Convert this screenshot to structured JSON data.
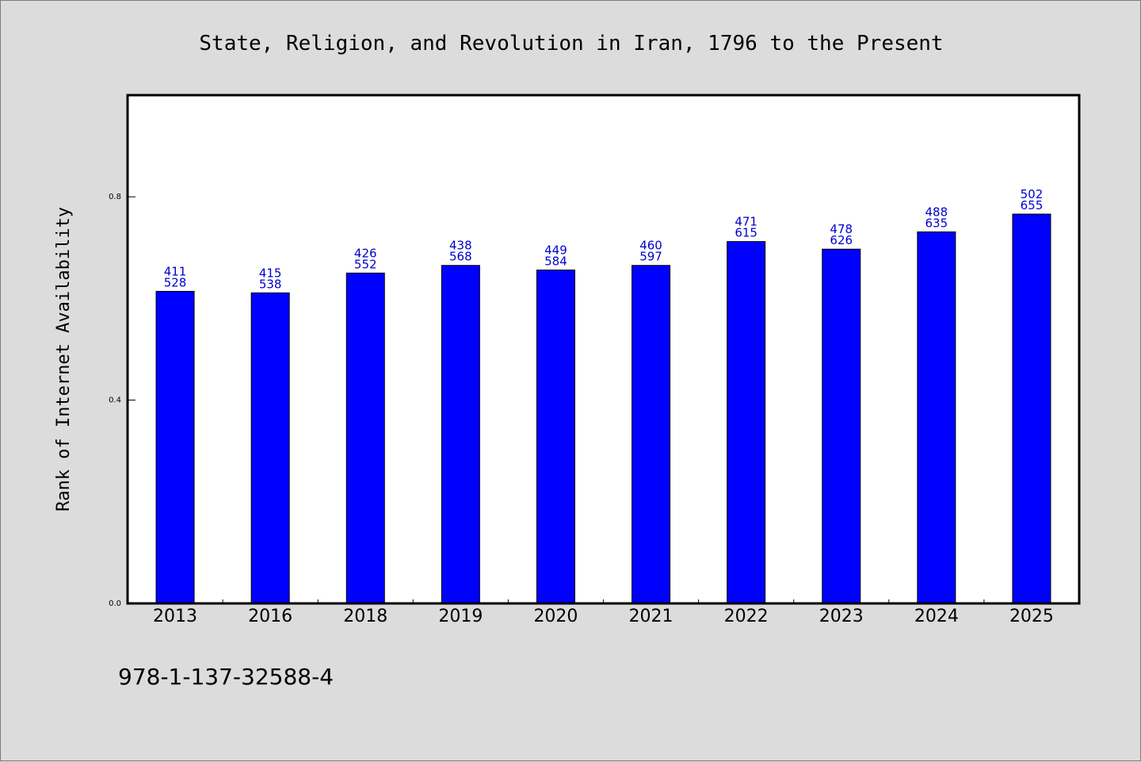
{
  "chart_data": {
    "type": "bar",
    "title": "State, Religion, and Revolution in Iran, 1796 to the Present",
    "ylabel": "Rank of Internet Availability",
    "xlabel": "",
    "categories": [
      "2013",
      "2016",
      "2018",
      "2019",
      "2020",
      "2021",
      "2022",
      "2023",
      "2024",
      "2025"
    ],
    "values": [
      0.614,
      0.611,
      0.65,
      0.665,
      0.656,
      0.665,
      0.712,
      0.697,
      0.731,
      0.766
    ],
    "labels_top": [
      "411",
      "415",
      "426",
      "438",
      "449",
      "460",
      "471",
      "478",
      "488",
      "502"
    ],
    "labels_bottom": [
      "528",
      "538",
      "552",
      "568",
      "584",
      "597",
      "615",
      "626",
      "635",
      "655"
    ],
    "yticks": [
      "0.0",
      "0.4",
      "0.8"
    ],
    "ytick_values": [
      0.0,
      0.4,
      0.8
    ],
    "ylim": [
      0,
      1.0
    ],
    "grid": false,
    "bar_color": "#0000ff",
    "label_color": "#0000cc"
  },
  "footer": {
    "isbn": "978-1-137-32588-4"
  }
}
